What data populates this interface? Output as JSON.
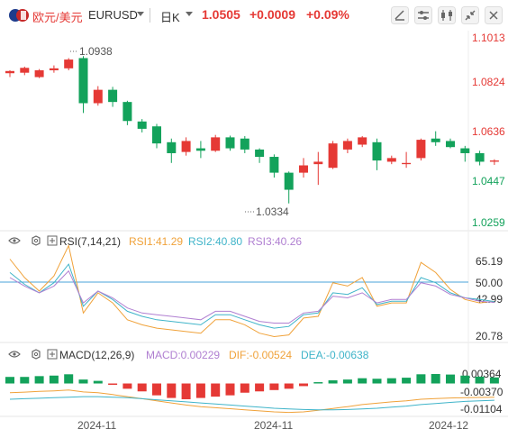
{
  "toolbar": {
    "pair_label": "欧元/美元",
    "symbol": "EURUSD",
    "period": "日K",
    "price": "1.0505",
    "change": "+0.0009",
    "change_pct": "+0.09%",
    "icons": [
      "draw-tool-icon",
      "settings-sliders-icon",
      "indicator-icon",
      "collapse-icon",
      "close-icon"
    ]
  },
  "colors": {
    "up": "#e53935",
    "down": "#13a25b",
    "accent_blue": "#4aa3d8"
  },
  "chart_data": [
    {
      "type": "candlestick",
      "yticks": [
        "1.1013",
        "1.0824",
        "1.0636",
        "1.0447",
        "1.0259"
      ],
      "ylim": [
        1.0259,
        1.1013
      ],
      "annotations": [
        {
          "label": "1.0938",
          "value": 1.0938,
          "index": 4
        },
        {
          "label": "1.0334",
          "value": 1.0334,
          "index": 21
        }
      ],
      "xticks": [
        {
          "label": "2024-11",
          "index": 7
        },
        {
          "label": "2024-11",
          "index": 24
        },
        {
          "label": "2024-12",
          "index": 41
        }
      ],
      "ohlc": [
        [
          1.0868,
          1.088,
          1.0852,
          1.0877
        ],
        [
          1.087,
          1.0895,
          1.086,
          1.089
        ],
        [
          1.0852,
          1.0885,
          1.0848,
          1.088
        ],
        [
          1.088,
          1.09,
          1.087,
          1.0888
        ],
        [
          1.0888,
          1.093,
          1.088,
          1.0924
        ],
        [
          1.093,
          1.0938,
          1.0705,
          1.0745
        ],
        [
          1.0745,
          1.0815,
          1.0735,
          1.08
        ],
        [
          1.08,
          1.0812,
          1.073,
          1.075
        ],
        [
          1.075,
          1.0755,
          1.0655,
          1.0672
        ],
        [
          1.067,
          1.068,
          1.0625,
          1.064
        ],
        [
          1.065,
          1.066,
          1.056,
          1.058
        ],
        [
          1.0585,
          1.06,
          1.05,
          1.054
        ],
        [
          1.0545,
          1.0605,
          1.053,
          1.059
        ],
        [
          1.056,
          1.059,
          1.052,
          1.055
        ],
        [
          1.055,
          1.0615,
          1.0545,
          1.0605
        ],
        [
          1.0605,
          1.0612,
          1.055,
          1.056
        ],
        [
          1.06,
          1.061,
          1.054,
          1.0555
        ],
        [
          1.0555,
          1.056,
          1.05,
          1.0525
        ],
        [
          1.0525,
          1.0535,
          1.044,
          1.046
        ],
        [
          1.046,
          1.0465,
          1.0334,
          1.039
        ],
        [
          1.046,
          1.052,
          1.044,
          1.049
        ],
        [
          1.0495,
          1.0545,
          1.041,
          1.0505
        ],
        [
          1.048,
          1.059,
          1.0475,
          1.058
        ],
        [
          1.0555,
          1.06,
          1.054,
          1.059
        ],
        [
          1.0575,
          1.061,
          1.0565,
          1.0605
        ],
        [
          1.0585,
          1.06,
          1.047,
          1.051
        ],
        [
          1.0505,
          1.053,
          1.0495,
          1.052
        ],
        [
          1.0495,
          1.0545,
          1.048,
          1.05
        ],
        [
          1.052,
          1.06,
          1.051,
          1.0595
        ],
        [
          1.06,
          1.063,
          1.057,
          1.0585
        ],
        [
          1.059,
          1.06,
          1.056,
          1.0565
        ],
        [
          1.056,
          1.057,
          1.0505,
          1.054
        ],
        [
          1.054,
          1.055,
          1.049,
          1.0505
        ],
        [
          1.0505,
          1.0515,
          1.0492,
          1.051
        ]
      ]
    },
    {
      "type": "line",
      "indicator": "RSI",
      "params": "(7,14,21)",
      "legend": [
        {
          "label": "RSI1:41.29",
          "color": "#f0a23a"
        },
        {
          "label": "RSI2:40.80",
          "color": "#3fb4c9"
        },
        {
          "label": "RSI3:40.26",
          "color": "#b07fd1"
        }
      ],
      "yticks": [
        "65.19",
        "50.00",
        "42.99",
        "20.78"
      ],
      "ylim": [
        20.78,
        65.19
      ],
      "reference_line": 50,
      "series": [
        {
          "name": "RSI1",
          "color": "#f0a23a",
          "values": [
            66,
            55,
            47,
            56,
            74,
            34,
            46,
            40,
            30,
            27,
            25,
            24,
            23,
            22,
            30,
            30,
            27,
            22,
            20,
            21,
            31,
            32,
            52,
            50,
            55,
            38,
            40,
            40,
            64,
            58,
            48,
            42,
            40,
            41
          ]
        },
        {
          "name": "RSI2",
          "color": "#3fb4c9",
          "values": [
            58,
            51,
            46,
            52,
            63,
            38,
            47,
            42,
            35,
            32,
            30,
            29,
            28,
            27,
            33,
            33,
            30,
            27,
            25,
            26,
            33,
            34,
            46,
            45,
            49,
            39,
            41,
            41,
            55,
            52,
            46,
            43,
            42,
            40.8
          ]
        },
        {
          "name": "RSI3",
          "color": "#b07fd1",
          "values": [
            55,
            50,
            46,
            50,
            59,
            40,
            47,
            43,
            37,
            34,
            33,
            32,
            31,
            30,
            35,
            35,
            32,
            29,
            28,
            28,
            34,
            35,
            44,
            43,
            46,
            40,
            42,
            42,
            52,
            50,
            45,
            43,
            41,
            40.3
          ]
        }
      ]
    },
    {
      "type": "bar",
      "indicator": "MACD",
      "params": "(12,26,9)",
      "legend": [
        {
          "label": "MACD:0.00229",
          "color": "#b07fd1"
        },
        {
          "label": "DIF:-0.00524",
          "color": "#f0a23a"
        },
        {
          "label": "DEA:-0.00638",
          "color": "#3fb4c9"
        }
      ],
      "yticks": [
        "0.00364",
        "-0.00370",
        "-0.01104"
      ],
      "ylim": [
        -0.0125,
        0.006
      ],
      "histogram": [
        0.0025,
        0.0025,
        0.0028,
        0.003,
        0.0035,
        0.0015,
        0.001,
        -0.0005,
        -0.002,
        -0.003,
        -0.0045,
        -0.0055,
        -0.006,
        -0.0055,
        -0.005,
        -0.0045,
        -0.0035,
        -0.003,
        -0.0025,
        -0.002,
        -0.001,
        0.0005,
        0.0012,
        0.0015,
        0.002,
        0.0018,
        0.002,
        0.0022,
        0.0035,
        0.0036,
        0.0034,
        0.003,
        0.0026,
        0.0023
      ],
      "series": [
        {
          "name": "DIF",
          "color": "#f0a23a",
          "values": [
            -0.0035,
            -0.0033,
            -0.003,
            -0.0028,
            -0.0025,
            -0.0032,
            -0.0035,
            -0.0042,
            -0.005,
            -0.0058,
            -0.0066,
            -0.0074,
            -0.0082,
            -0.0088,
            -0.0092,
            -0.0096,
            -0.01,
            -0.0104,
            -0.0108,
            -0.011,
            -0.0108,
            -0.0102,
            -0.0095,
            -0.0088,
            -0.008,
            -0.0075,
            -0.007,
            -0.0066,
            -0.006,
            -0.0057,
            -0.0055,
            -0.0054,
            -0.0053,
            -0.00524
          ]
        },
        {
          "name": "DEA",
          "color": "#3fb4c9",
          "values": [
            -0.006,
            -0.0058,
            -0.0056,
            -0.0054,
            -0.0052,
            -0.005,
            -0.005,
            -0.0052,
            -0.0054,
            -0.0058,
            -0.0062,
            -0.0066,
            -0.007,
            -0.0074,
            -0.0078,
            -0.0082,
            -0.0086,
            -0.009,
            -0.0094,
            -0.0097,
            -0.0099,
            -0.01,
            -0.01,
            -0.0099,
            -0.0097,
            -0.0094,
            -0.009,
            -0.0086,
            -0.008,
            -0.0076,
            -0.0072,
            -0.0068,
            -0.0066,
            -0.00638
          ]
        }
      ]
    }
  ]
}
